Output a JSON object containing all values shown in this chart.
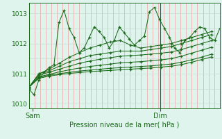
{
  "xlabel": "Pression niveau de la mer( hPa )",
  "bg_color": "#e0f4ee",
  "grid_color_v": "#f0a0a0",
  "grid_color_h": "#c8dcd0",
  "line_color": "#1a6b1a",
  "tick_label_color": "#1a6b1a",
  "ylim": [
    1009.85,
    1013.35
  ],
  "xlim": [
    0,
    48
  ],
  "sam_x": 1,
  "dim_x": 33,
  "n_vgrid": 34,
  "series_main": [
    1010.5,
    1010.3,
    1010.8,
    1011.05,
    1011.2,
    1011.3,
    1012.7,
    1013.1,
    1012.5,
    1012.2,
    1011.7,
    1011.85,
    1012.2,
    1012.55,
    1012.4,
    1012.2,
    1011.85,
    1012.1,
    1012.55,
    1012.35,
    1012.15,
    1011.95,
    1012.1,
    1012.25,
    1013.05,
    1013.2,
    1012.8,
    1012.5,
    1012.2,
    1011.85,
    1011.7,
    1012.1,
    1012.2,
    1012.4,
    1012.55,
    1012.5,
    1012.2,
    1012.1,
    1012.5
  ],
  "series_smooth": [
    [
      1010.55,
      1011.0,
      1011.15,
      1011.35,
      1011.55,
      1011.7,
      1011.85,
      1011.95,
      1012.05,
      1012.1,
      1011.95,
      1011.85,
      1011.9,
      1011.95,
      1012.0,
      1012.1,
      1012.2,
      1012.3,
      1012.4
    ],
    [
      1010.55,
      1011.0,
      1011.1,
      1011.25,
      1011.4,
      1011.5,
      1011.6,
      1011.65,
      1011.7,
      1011.75,
      1011.75,
      1011.75,
      1011.8,
      1011.85,
      1011.9,
      1012.0,
      1012.1,
      1012.2,
      1012.3
    ],
    [
      1010.55,
      1010.95,
      1011.05,
      1011.15,
      1011.25,
      1011.35,
      1011.42,
      1011.48,
      1011.53,
      1011.58,
      1011.6,
      1011.62,
      1011.65,
      1011.68,
      1011.72,
      1011.8,
      1011.9,
      1012.0,
      1012.1
    ],
    [
      1010.55,
      1010.9,
      1010.98,
      1011.06,
      1011.13,
      1011.19,
      1011.24,
      1011.28,
      1011.32,
      1011.36,
      1011.38,
      1011.4,
      1011.43,
      1011.46,
      1011.5,
      1011.58,
      1011.68,
      1011.78,
      1011.88
    ],
    [
      1010.55,
      1010.88,
      1010.95,
      1011.0,
      1011.05,
      1011.09,
      1011.12,
      1011.15,
      1011.18,
      1011.2,
      1011.22,
      1011.24,
      1011.26,
      1011.29,
      1011.32,
      1011.38,
      1011.46,
      1011.55,
      1011.65
    ],
    [
      1010.55,
      1010.85,
      1010.92,
      1010.97,
      1011.01,
      1011.04,
      1011.07,
      1011.09,
      1011.11,
      1011.13,
      1011.15,
      1011.17,
      1011.19,
      1011.22,
      1011.25,
      1011.3,
      1011.38,
      1011.47,
      1011.56
    ]
  ]
}
